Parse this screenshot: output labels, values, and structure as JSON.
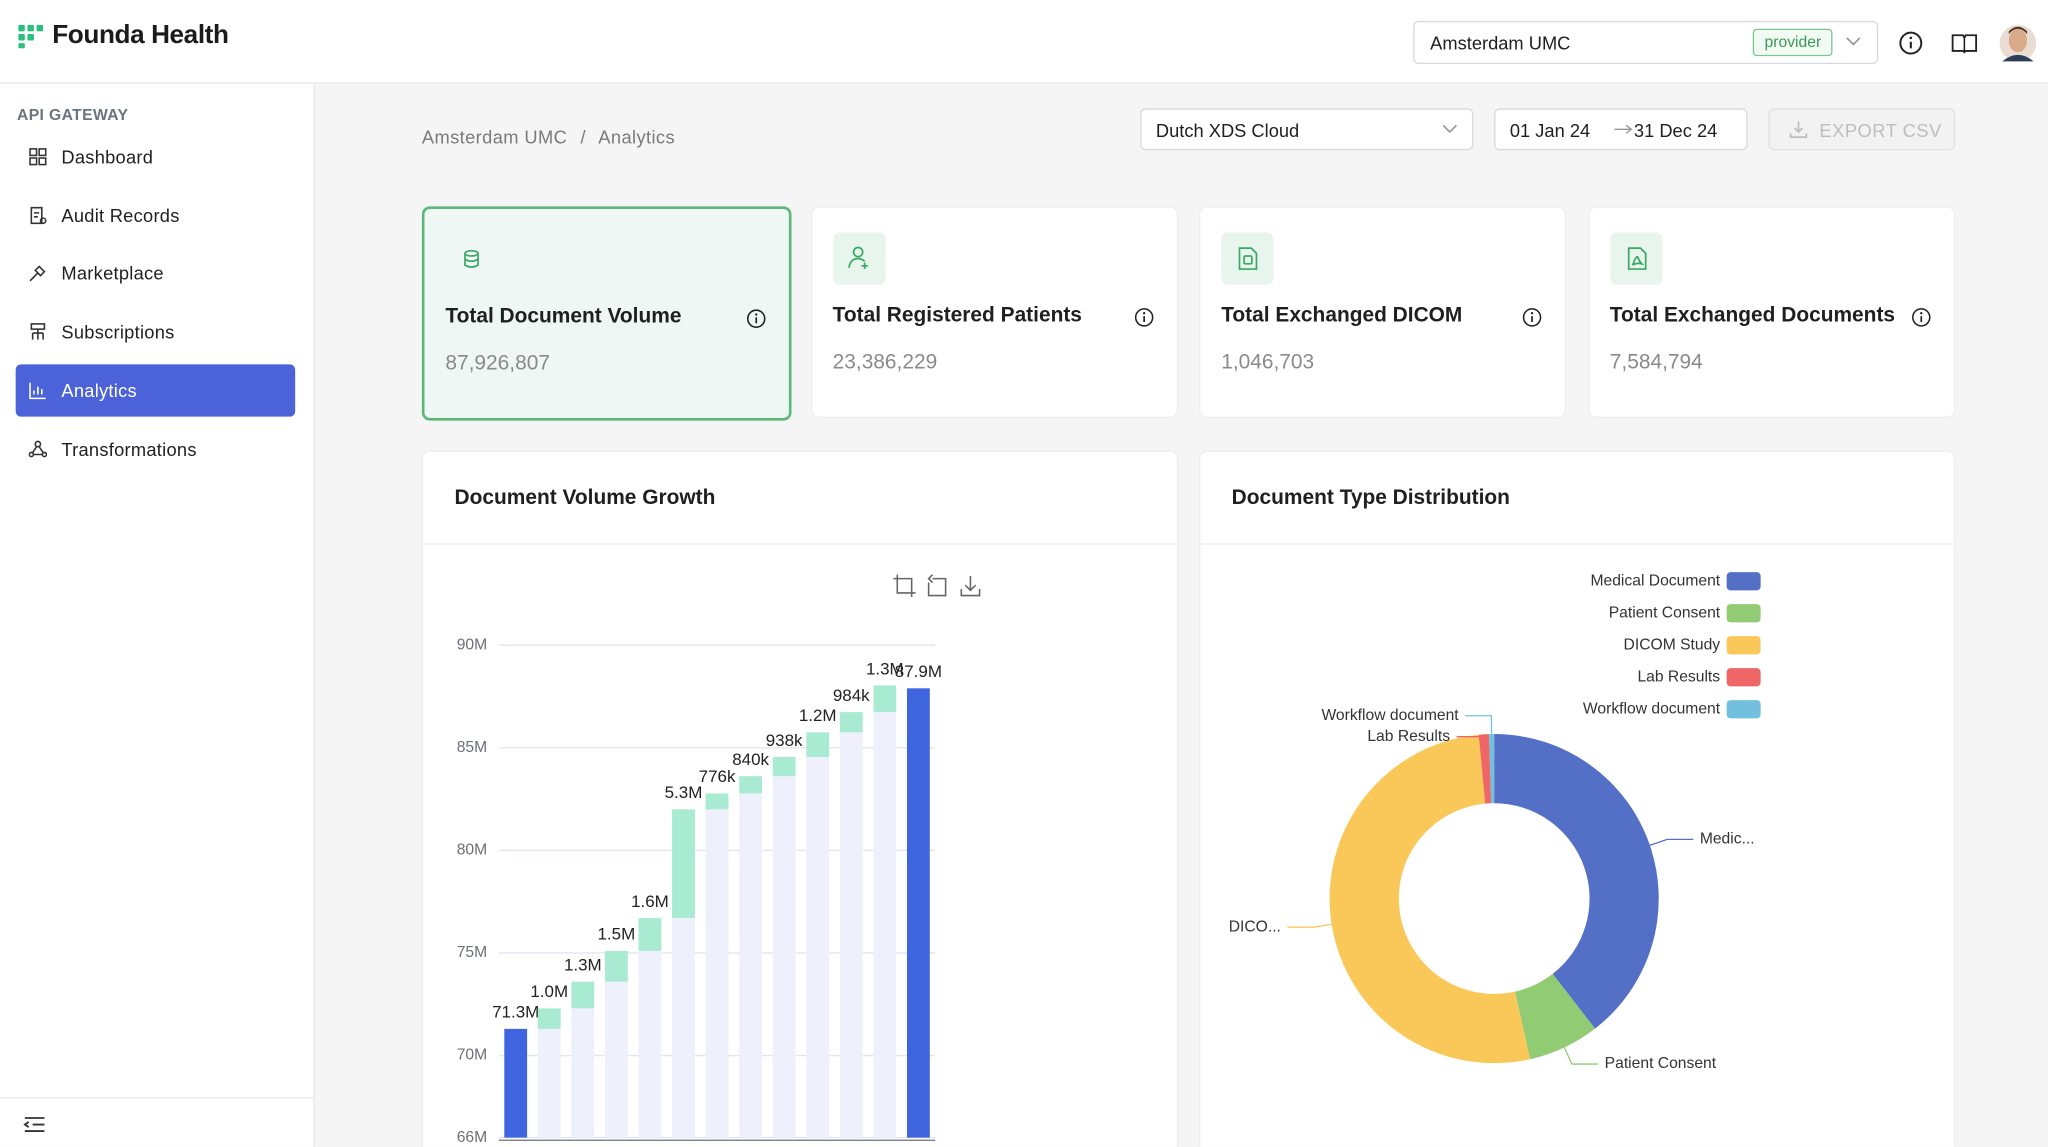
{
  "header": {
    "brand": "Founda Health",
    "organization": "Amsterdam UMC",
    "role_badge": "provider"
  },
  "sidebar": {
    "section": "API GATEWAY",
    "items": [
      {
        "label": "Dashboard",
        "active": false
      },
      {
        "label": "Audit Records",
        "active": false
      },
      {
        "label": "Marketplace",
        "active": false
      },
      {
        "label": "Subscriptions",
        "active": false
      },
      {
        "label": "Analytics",
        "active": true
      },
      {
        "label": "Transformations",
        "active": false
      }
    ]
  },
  "breadcrumb": {
    "items": [
      "Amsterdam UMC",
      "Analytics"
    ],
    "separator": "/"
  },
  "filters": {
    "source": "Dutch XDS Cloud",
    "date_from": "01 Jan 24",
    "date_to": "31 Dec 24",
    "export": "EXPORT CSV"
  },
  "cards": [
    {
      "title": "Total Document Volume",
      "value": "87,926,807",
      "selected": true
    },
    {
      "title": "Total Registered Patients",
      "value": "23,386,229",
      "selected": false
    },
    {
      "title": "Total Exchanged DICOM",
      "value": "1,046,703",
      "selected": false
    },
    {
      "title": "Total Exchanged Documents",
      "value": "7,584,794",
      "selected": false
    }
  ],
  "chart_data": [
    {
      "type": "waterfall",
      "title": "Document Volume Growth",
      "categories": [
        null,
        null,
        null,
        null,
        null,
        null,
        null,
        null,
        null,
        null,
        null,
        null,
        null
      ],
      "values": [
        71300000,
        1000000,
        1300000,
        1500000,
        1600000,
        5300000,
        776000,
        840000,
        938000,
        1200000,
        984000,
        1300000,
        87900000
      ],
      "value_labels": [
        "71.3M",
        "1.0M",
        "1.3M",
        "1.5M",
        "1.6M",
        "5.3M",
        "776k",
        "840k",
        "938k",
        "1.2M",
        "984k",
        "1.3M",
        "87.9M"
      ],
      "color": "#3e64de",
      "increase_color": "#a9ebd2",
      "support_color": "#eef0fb",
      "ylim": [
        66000000,
        90000000
      ],
      "yticks": [
        {
          "value": 66000000,
          "label": "66M"
        },
        {
          "value": 70000000,
          "label": "70M"
        },
        {
          "value": 75000000,
          "label": "75M"
        },
        {
          "value": 80000000,
          "label": "80M"
        },
        {
          "value": 85000000,
          "label": "85M"
        },
        {
          "value": 90000000,
          "label": "90M"
        }
      ],
      "grid": true
    },
    {
      "type": "pie",
      "title": "Document Type Distribution",
      "categories": [
        "Medical Document",
        "Patient Consent",
        "DICOM Study",
        "Lab Results",
        "Workflow document"
      ],
      "values": [
        39.5,
        7,
        52,
        1,
        0.5
      ],
      "slice_labels": [
        "Medic...",
        "Patient Consent",
        "DICO...",
        "Lab Results",
        "Workflow document"
      ],
      "colors": [
        "#5470c6",
        "#91cc75",
        "#fac858",
        "#ee6666",
        "#73c0de"
      ],
      "donut": true,
      "legend": "top-right"
    }
  ]
}
